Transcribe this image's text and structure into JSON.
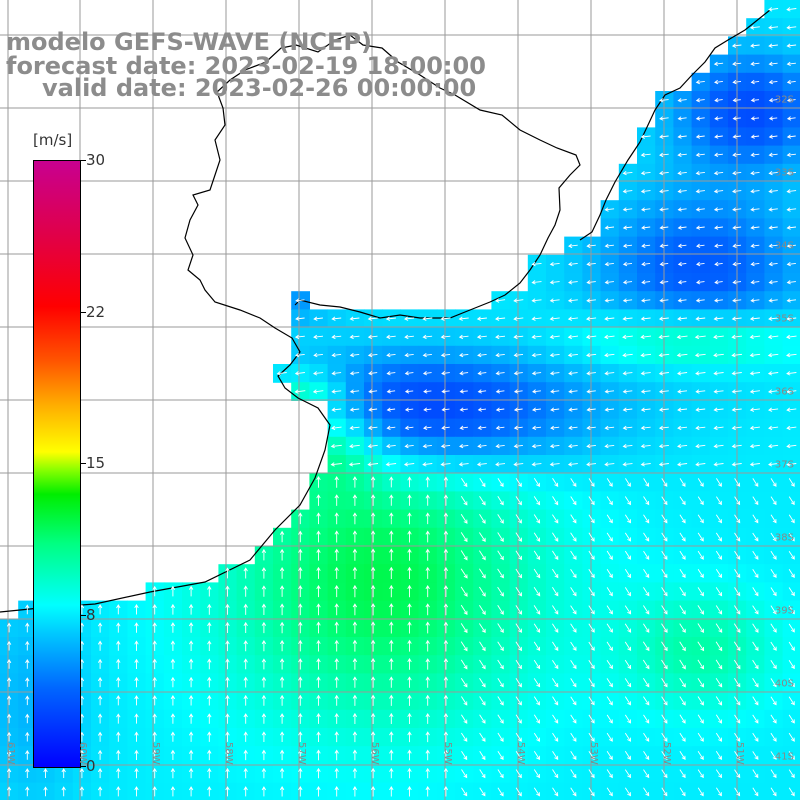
{
  "title": {
    "model": "modelo GEFS-WAVE (NCEP)",
    "forecast": "forecast date: 2023-02-19 18:00:00",
    "valid": "valid date: 2023-02-26 00:00:00"
  },
  "colorbar": {
    "units": "[m/s]",
    "min": 0,
    "max": 30,
    "ticks": [
      {
        "value": 30,
        "label": "30"
      },
      {
        "value": 22.5,
        "label": "22"
      },
      {
        "value": 15,
        "label": "15"
      },
      {
        "value": 7.5,
        "label": "8"
      },
      {
        "value": 0,
        "label": "0"
      }
    ]
  },
  "lat_labels": [
    "32S",
    "33S",
    "34S",
    "35S",
    "36S",
    "37S",
    "38S",
    "39S",
    "40S",
    "41S"
  ],
  "lon_labels": [
    "61W",
    "60W",
    "59W",
    "58W",
    "57W",
    "56W",
    "55W",
    "54W",
    "53W",
    "52W",
    "51W"
  ],
  "colors": {
    "land": "#ffffff",
    "coast": "#000000",
    "grid": "#9a9a9a",
    "arrows": "#ffffff",
    "title": "#8c8c8c"
  }
}
